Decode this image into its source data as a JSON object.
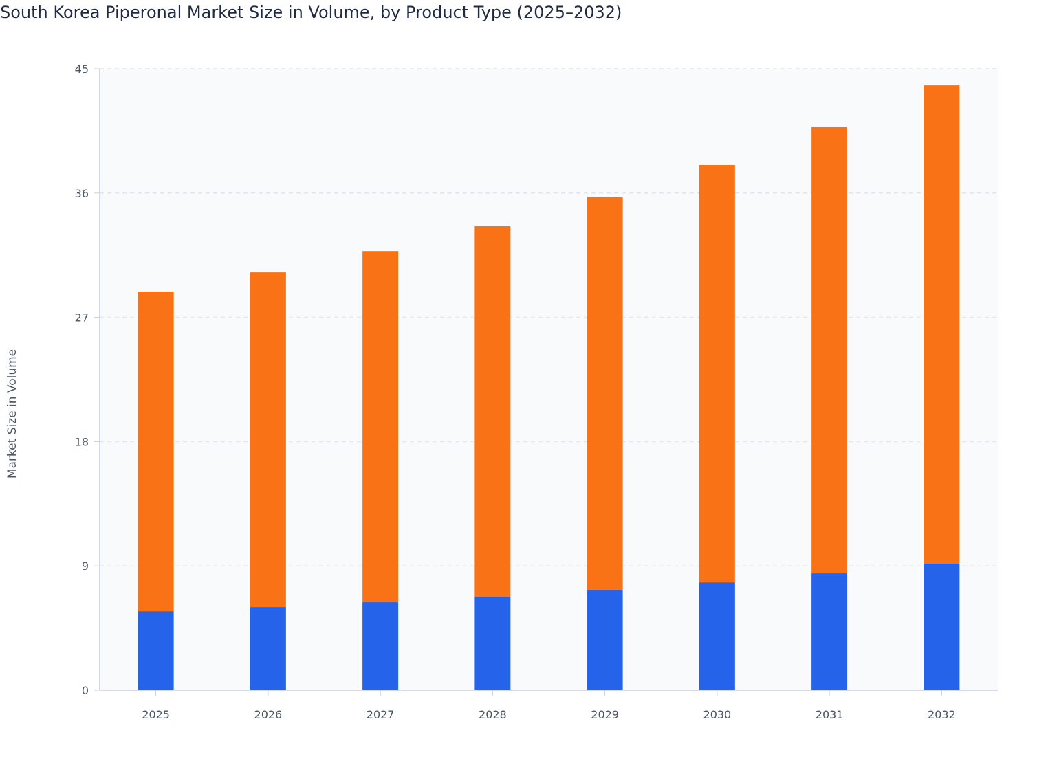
{
  "chart_data": {
    "type": "bar",
    "stacked": true,
    "title": "South Korea Piperonal Market Size in Volume, by Product Type (2025–2032)",
    "xlabel": "",
    "ylabel": "Market Size in Volume",
    "ylim": [
      0,
      45
    ],
    "yticks": [
      0,
      9,
      18,
      27,
      36,
      45
    ],
    "grid": true,
    "legend": "none",
    "categories": [
      "2025",
      "2026",
      "2027",
      "2028",
      "2029",
      "2030",
      "2031",
      "2032"
    ],
    "series": [
      {
        "color": "#2563eb",
        "values": [
          5.72,
          6.02,
          6.37,
          6.77,
          7.27,
          7.81,
          8.46,
          9.16
        ]
      },
      {
        "color": "#f97316",
        "values": [
          23.15,
          24.24,
          25.43,
          26.83,
          28.43,
          30.22,
          32.31,
          34.64
        ]
      }
    ],
    "colors": {
      "plot_background": "#f8fafc",
      "grid": "#e2e5ea",
      "axis": "#c7cde0"
    }
  }
}
